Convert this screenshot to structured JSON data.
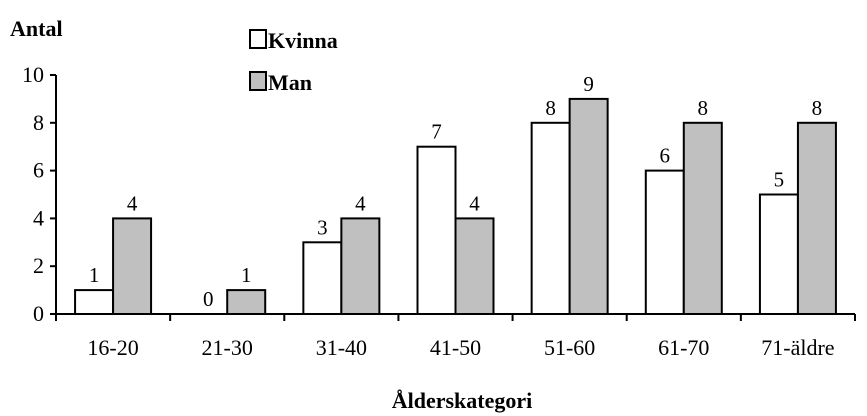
{
  "chart_data": {
    "type": "bar",
    "ylabel": "Antal",
    "xlabel": "Ålderskategori",
    "categories": [
      "16-20",
      "21-30",
      "31-40",
      "41-50",
      "51-60",
      "61-70",
      "71-äldre"
    ],
    "series": [
      {
        "name": "Kvinna",
        "values": [
          1,
          0,
          3,
          7,
          8,
          6,
          5
        ],
        "color": "#ffffff"
      },
      {
        "name": "Man",
        "values": [
          4,
          1,
          4,
          4,
          9,
          8,
          8
        ],
        "color": "#c0c0c0"
      }
    ],
    "ylim": [
      0,
      10
    ],
    "yticks": [
      0,
      2,
      4,
      6,
      8,
      10
    ],
    "data_labels": true,
    "grid": false,
    "legend_position": "top-left"
  }
}
